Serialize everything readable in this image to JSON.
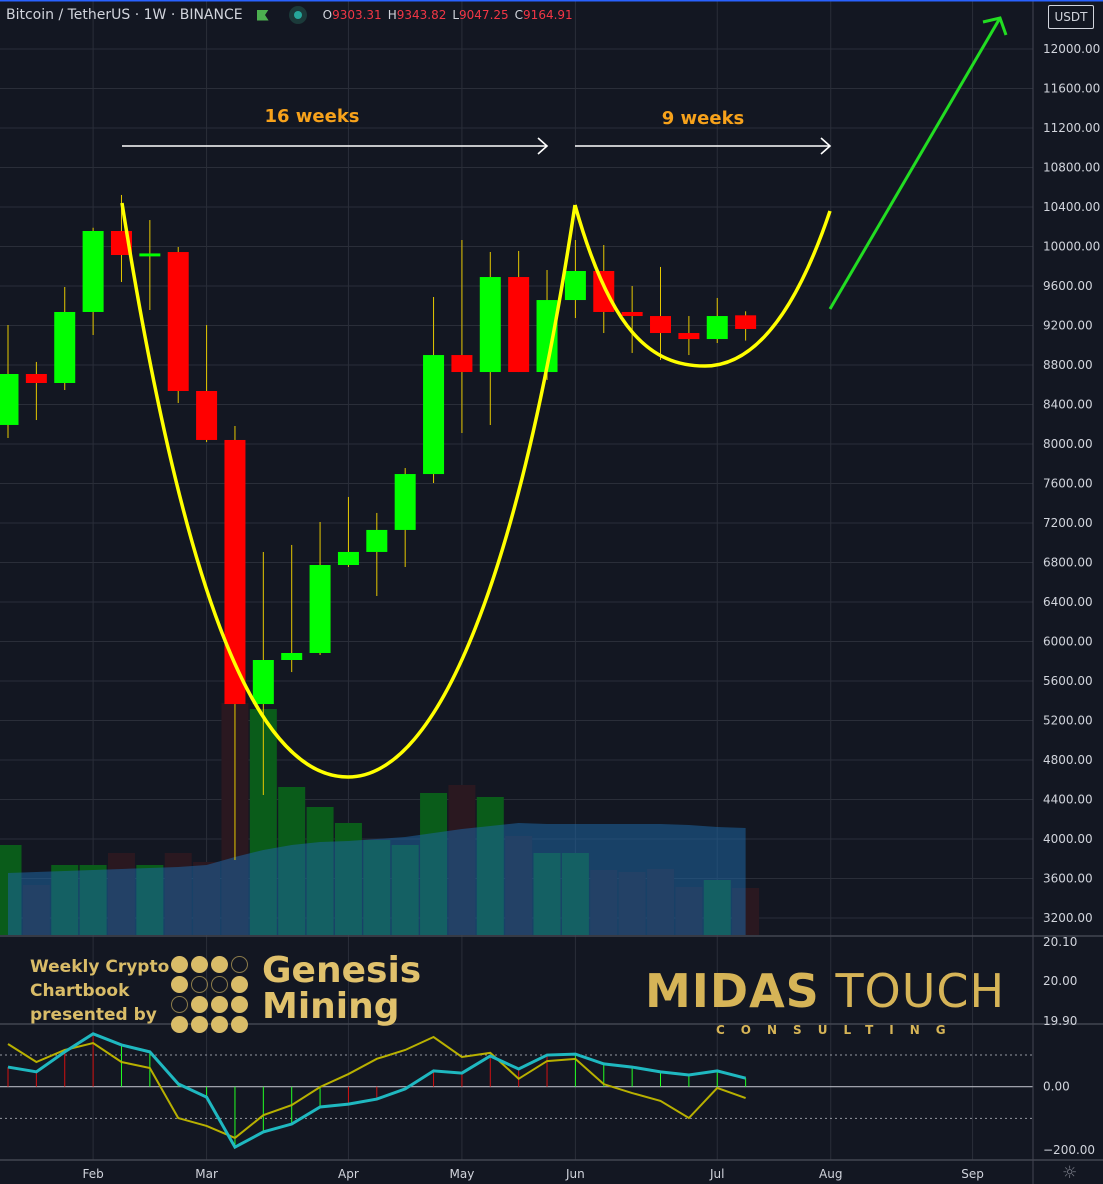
{
  "header": {
    "symbol": "Bitcoin / TetherUS · 1W · BINANCE",
    "ohlc": {
      "o_label": "O",
      "o": "9303.31",
      "h_label": "H",
      "h": "9343.82",
      "l_label": "L",
      "l": "9047.25",
      "c_label": "C",
      "c": "9164.91"
    }
  },
  "currency_label": "USDT",
  "colors": {
    "background": "#131722",
    "up": "#00ff00",
    "down": "#ff0000",
    "wick": "#e6c800",
    "cup": "#ffff00",
    "arrow_up": "#22dd22",
    "label": "#f7a21b",
    "cyan_line": "#1fb8c0",
    "olive_line": "#b8b000",
    "grid": "#2a2e39"
  },
  "annotations": {
    "left_span": "16 weeks",
    "right_span": "9 weeks"
  },
  "branding": {
    "gm_lines": [
      "Weekly Crypto",
      "Chartbook",
      "presented by"
    ],
    "gm_name_lines": [
      "Genesis",
      "Mining"
    ],
    "midas_bold": "MIDAS",
    "midas_light": "TOUCH",
    "consulting": "CONSULTING"
  },
  "chart_data": {
    "type": "candlestick",
    "interval": "1W",
    "dates": [
      "2020-01-13",
      "2020-01-20",
      "2020-01-27",
      "2020-02-03",
      "2020-02-10",
      "2020-02-17",
      "2020-02-24",
      "2020-03-02",
      "2020-03-09",
      "2020-03-16",
      "2020-03-23",
      "2020-03-30",
      "2020-04-06",
      "2020-04-13",
      "2020-04-20",
      "2020-04-27",
      "2020-05-04",
      "2020-05-11",
      "2020-05-18",
      "2020-05-25",
      "2020-06-01",
      "2020-06-08",
      "2020-06-15",
      "2020-06-22",
      "2020-06-29",
      "2020-07-06",
      "2020-07-13"
    ],
    "ohlc": [
      [
        8193,
        9205,
        8061,
        8709
      ],
      [
        8709,
        8831,
        8243,
        8618
      ],
      [
        8618,
        9590,
        8547,
        9337
      ],
      [
        9337,
        10190,
        9104,
        10157
      ],
      [
        10157,
        10522,
        9641,
        9914
      ],
      [
        9900,
        10268,
        9357,
        9930
      ],
      [
        9944,
        9995,
        8415,
        8537
      ],
      [
        8537,
        9205,
        8020,
        8041
      ],
      [
        8041,
        8182,
        3788,
        5367
      ],
      [
        5367,
        6907,
        4446,
        5813
      ],
      [
        5813,
        6978,
        5691,
        5884
      ],
      [
        5884,
        7210,
        5864,
        6775
      ],
      [
        6775,
        7464,
        6755,
        6907
      ],
      [
        6907,
        7302,
        6461,
        7130
      ],
      [
        7130,
        7757,
        6755,
        7696
      ],
      [
        7696,
        9489,
        7605,
        8901
      ],
      [
        8901,
        10066,
        8112,
        8729
      ],
      [
        8729,
        9944,
        8193,
        9691
      ],
      [
        9691,
        9955,
        8729,
        8729
      ],
      [
        8729,
        9762,
        8648,
        9458
      ],
      [
        9458,
        10066,
        9276,
        9752
      ],
      [
        9752,
        10015,
        9124,
        9337
      ],
      [
        9337,
        9600,
        8922,
        9296
      ],
      [
        9296,
        9793,
        8851,
        9124
      ],
      [
        9124,
        9296,
        8901,
        9063
      ],
      [
        9063,
        9479,
        9023,
        9296
      ],
      [
        9303.31,
        9343.82,
        9047.25,
        9164.91
      ]
    ],
    "volume_relative": [
      90,
      50,
      70,
      70,
      82,
      70,
      82,
      73,
      232,
      226,
      148,
      128,
      112,
      95,
      90,
      142,
      150,
      138,
      99,
      82,
      82,
      65,
      63,
      66,
      48,
      55,
      47
    ],
    "volume_up": [
      true,
      false,
      true,
      true,
      false,
      true,
      false,
      false,
      false,
      true,
      true,
      true,
      true,
      true,
      true,
      true,
      false,
      true,
      false,
      true,
      true,
      false,
      false,
      false,
      false,
      true,
      false
    ],
    "volume_ma_relative": [
      62,
      63,
      64,
      65,
      66,
      67,
      68,
      70,
      78,
      85,
      90,
      93,
      94,
      96,
      98,
      102,
      106,
      109,
      112,
      111,
      111,
      111,
      111,
      111,
      110,
      108,
      107
    ],
    "price_axis": {
      "min": 3200,
      "max": 12000,
      "step": 400,
      "ticks": [
        "12000.00",
        "11600.00",
        "11200.00",
        "10800.00",
        "10400.00",
        "10000.00",
        "9600.00",
        "9200.00",
        "8800.00",
        "8400.00",
        "8000.00",
        "7600.00",
        "7200.00",
        "6800.00",
        "6400.00",
        "6000.00",
        "5600.00",
        "5200.00",
        "4800.00",
        "4400.00",
        "4000.00",
        "3600.00",
        "3200.00"
      ]
    },
    "time_axis": {
      "ticks": [
        {
          "label": "Feb",
          "index": 3
        },
        {
          "label": "Mar",
          "index": 7
        },
        {
          "label": "Apr",
          "index": 12
        },
        {
          "label": "May",
          "index": 16
        },
        {
          "label": "Jun",
          "index": 20
        },
        {
          "label": "Jul",
          "index": 25
        },
        {
          "label": "Aug",
          "index": 29
        },
        {
          "label": "Sep",
          "index": 34
        }
      ]
    },
    "logo_pane_axis": [
      "20.10",
      "20.00",
      "19.90"
    ],
    "oscillator": {
      "axis_ticks": [
        {
          "label": "0.00",
          "value": 0
        },
        {
          "label": "−200.00",
          "value": -200
        }
      ],
      "bands": [
        100,
        -100
      ],
      "cyan": [
        62,
        47,
        110,
        167,
        132,
        110,
        9,
        -33,
        -191,
        -143,
        -118,
        -64,
        -55,
        -39,
        -7,
        50,
        43,
        97,
        56,
        100,
        103,
        72,
        62,
        47,
        37,
        50,
        27
      ],
      "olive": [
        135,
        78,
        116,
        138,
        78,
        59,
        -99,
        -124,
        -162,
        -90,
        -58,
        -1,
        40,
        88,
        116,
        157,
        94,
        107,
        25,
        81,
        88,
        8,
        -20,
        -45,
        -99,
        -4,
        -36
      ],
      "histogram_colors": [
        "red",
        "red",
        "red",
        "red",
        "green",
        "green",
        "green",
        "green",
        "green",
        "green",
        "green",
        "green",
        "red",
        "red",
        "none",
        "red",
        "red",
        "red",
        "red",
        "red",
        "green",
        "green",
        "green",
        "green",
        "green",
        "green",
        "green"
      ]
    }
  }
}
